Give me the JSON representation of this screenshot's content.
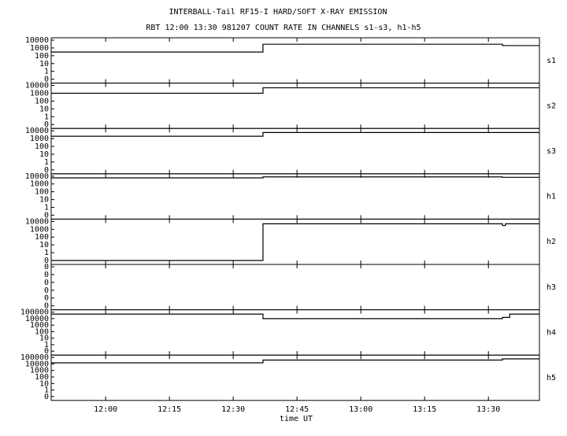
{
  "chart_data": [
    {
      "type": "line",
      "title": "INTERBALL-Tail RF15-I HARD/SOFT X-RAY EMISSION",
      "subtitle": "RBT 12:00 13:30 981207  COUNT RATE IN CHANNELS s1-s3, h1-h5",
      "label": "s1",
      "log": true,
      "step": "post",
      "color": "#000000",
      "x": [
        707.2,
        757,
        813.3,
        822
      ],
      "values": [
        300,
        3000,
        2000,
        2000
      ],
      "xlim": [
        707.2,
        822
      ],
      "ylim": [
        0.1,
        10000
      ],
      "yticks": [
        10000,
        1000,
        100,
        10,
        1,
        {
          "value": 0.1,
          "label": "0"
        }
      ]
    },
    {
      "type": "line",
      "label": "s2",
      "log": true,
      "step": "post",
      "color": "#000000",
      "x": [
        707.2,
        757,
        822
      ],
      "values": [
        1000,
        5000,
        5000
      ],
      "xlim": [
        707.2,
        822
      ],
      "ylim": [
        0.1,
        10000
      ],
      "yticks": [
        10000,
        1000,
        100,
        10,
        1,
        {
          "value": 0.1,
          "label": "0"
        }
      ]
    },
    {
      "type": "line",
      "label": "s3",
      "log": true,
      "step": "post",
      "color": "#000000",
      "x": [
        707.2,
        757,
        822
      ],
      "values": [
        2000,
        6000,
        6000
      ],
      "xlim": [
        707.2,
        822
      ],
      "ylim": [
        0.1,
        10000
      ],
      "yticks": [
        10000,
        1000,
        100,
        10,
        1,
        {
          "value": 0.1,
          "label": "0"
        }
      ]
    },
    {
      "type": "line",
      "label": "h1",
      "log": true,
      "step": "post",
      "color": "#000000",
      "x": [
        707.2,
        757,
        813.3,
        822
      ],
      "values": [
        6000,
        8000,
        7000,
        7000
      ],
      "xlim": [
        707.2,
        822
      ],
      "ylim": [
        0.1,
        10000
      ],
      "yticks": [
        10000,
        1000,
        100,
        10,
        1,
        {
          "value": 0.1,
          "label": "0"
        }
      ]
    },
    {
      "type": "line",
      "label": "h2",
      "log": true,
      "step": "post",
      "color": "#000000",
      "x": [
        707.2,
        757,
        813.3,
        814,
        822
      ],
      "values": [
        0.1,
        5000,
        3000,
        5000,
        5000
      ],
      "xlim": [
        707.2,
        822
      ],
      "ylim": [
        0.1,
        10000
      ],
      "yticks": [
        10000,
        1000,
        100,
        10,
        1,
        {
          "value": 0.1,
          "label": "0"
        }
      ]
    },
    {
      "type": "line",
      "label": "h3",
      "log": false,
      "step": "post",
      "color": "#000000",
      "x": [],
      "values": [],
      "xlim": [
        707.2,
        822
      ],
      "ylim": [
        0,
        5
      ],
      "yticks": [
        {
          "value": 5,
          "label": "0"
        },
        {
          "value": 4,
          "label": "0"
        },
        {
          "value": 3,
          "label": "0"
        },
        {
          "value": 2,
          "label": "0"
        },
        {
          "value": 1,
          "label": "0"
        },
        {
          "value": 0,
          "label": "0"
        }
      ]
    },
    {
      "type": "line",
      "label": "h4",
      "log": true,
      "step": "post",
      "color": "#000000",
      "x": [
        707.2,
        757,
        813.3,
        815,
        822
      ],
      "values": [
        50000,
        10000,
        15000,
        50000,
        50000
      ],
      "xlim": [
        707.2,
        822
      ],
      "ylim": [
        0.1,
        100000
      ],
      "yticks": [
        100000,
        10000,
        1000,
        100,
        10,
        1,
        {
          "value": 0.1,
          "label": "0"
        }
      ]
    },
    {
      "type": "line",
      "label": "h5",
      "log": true,
      "step": "post",
      "color": "#000000",
      "x": [
        707.2,
        757,
        813.3,
        822
      ],
      "values": [
        15000,
        40000,
        60000,
        60000
      ],
      "xlim": [
        707.2,
        822
      ],
      "ylim": [
        0.1,
        100000
      ],
      "yticks": [
        100000,
        10000,
        1000,
        100,
        10,
        1,
        {
          "value": 0.1,
          "label": "0"
        }
      ],
      "xlabel": "time UT",
      "xticks": [
        {
          "value": 720,
          "label": "12:00"
        },
        {
          "value": 735,
          "label": "12:15"
        },
        {
          "value": 750,
          "label": "12:30"
        },
        {
          "value": 765,
          "label": "12:45"
        },
        {
          "value": 780,
          "label": "13:00"
        },
        {
          "value": 795,
          "label": "13:15"
        },
        {
          "value": 810,
          "label": "13:30"
        }
      ]
    }
  ]
}
